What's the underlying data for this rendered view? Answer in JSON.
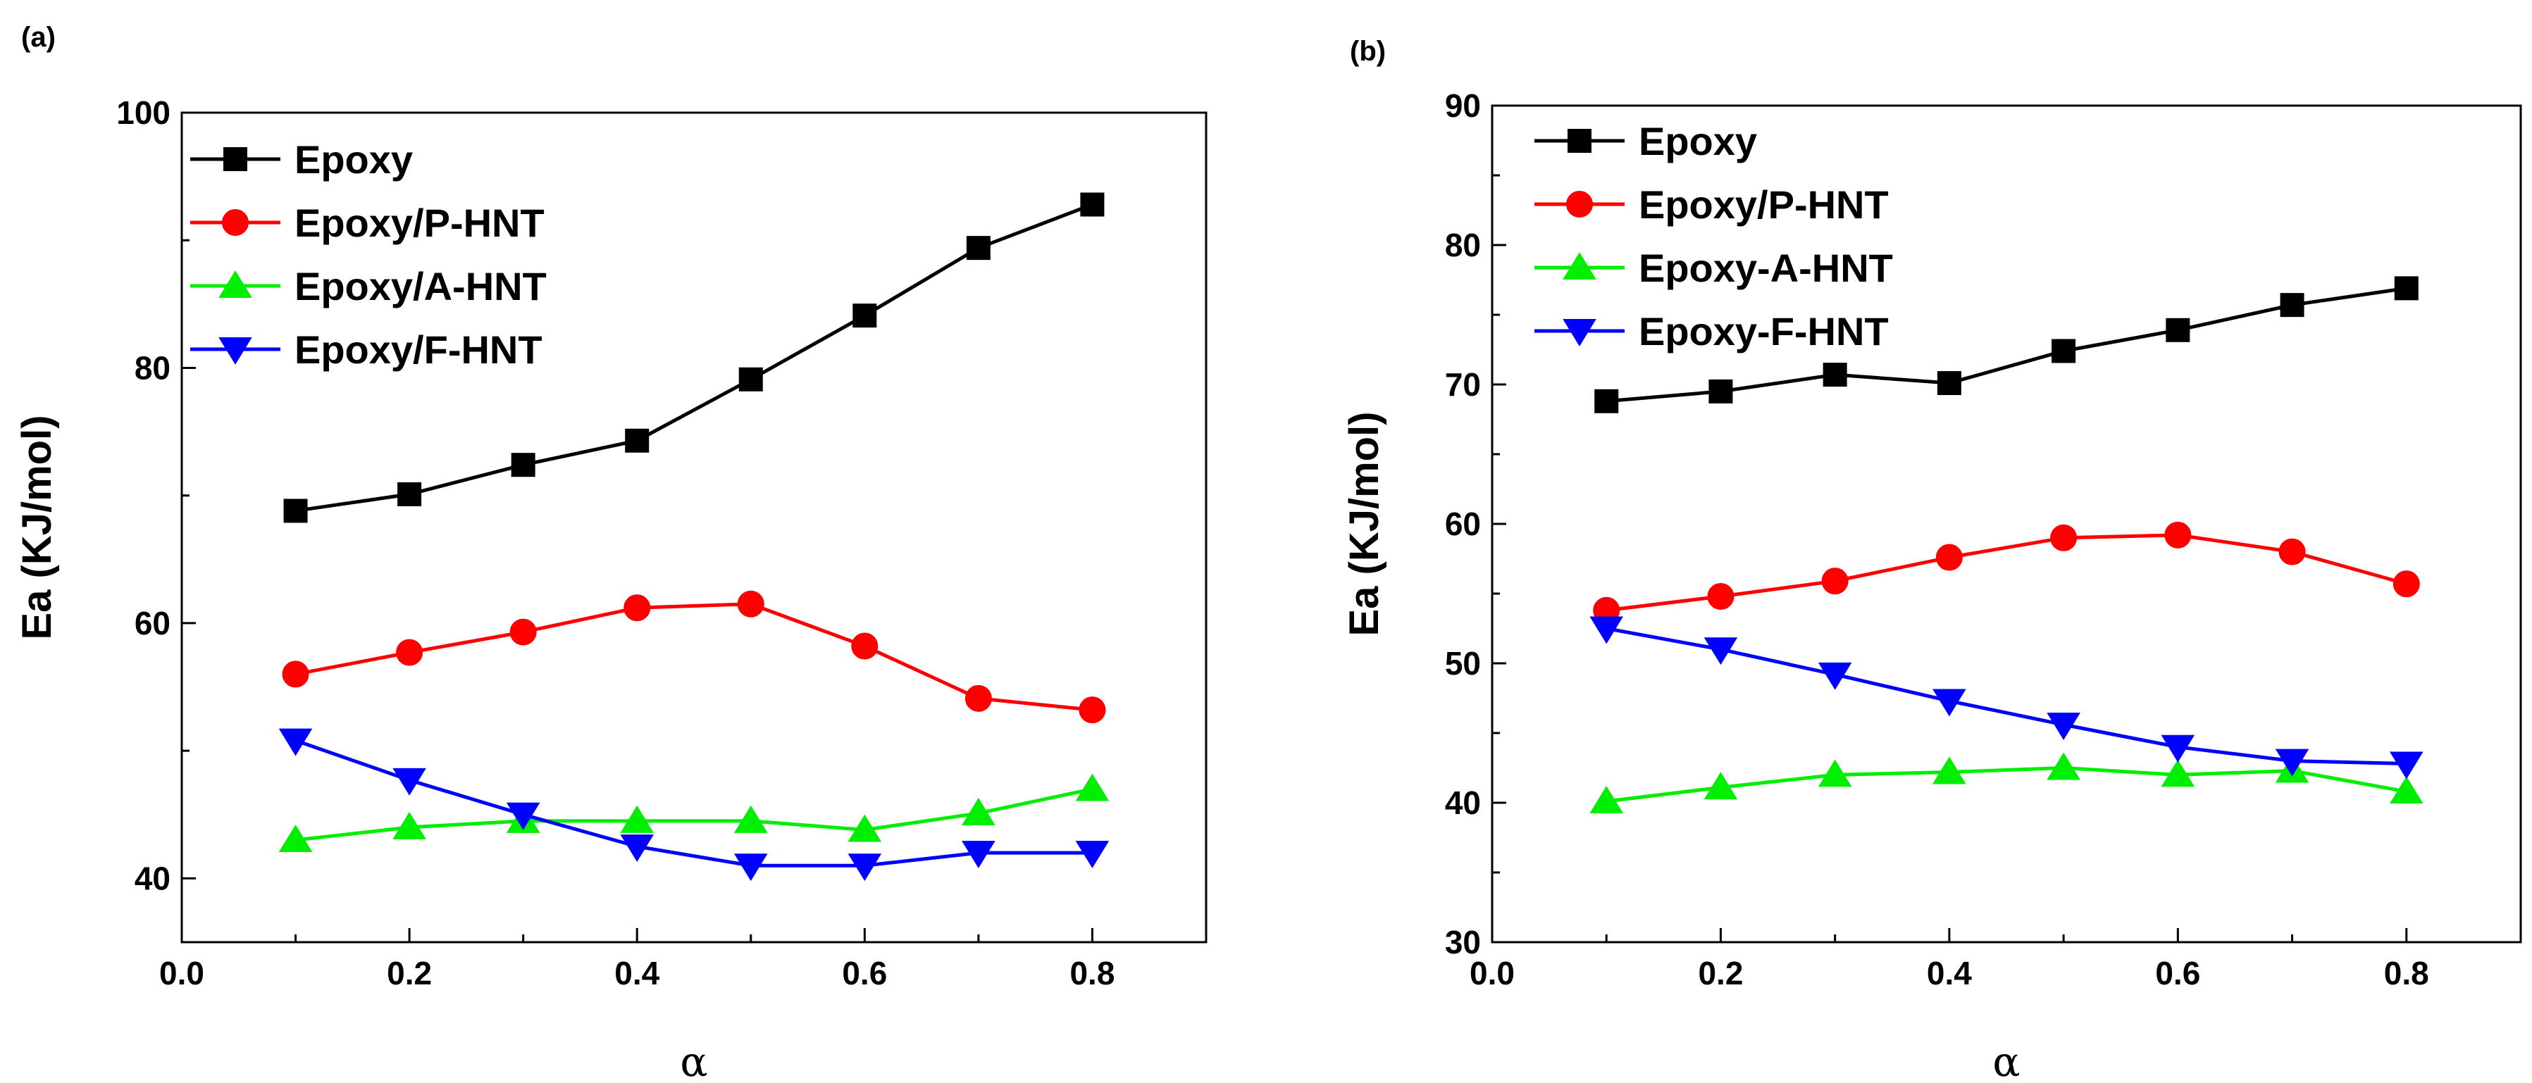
{
  "chart_data": [
    {
      "type": "line",
      "panel_label": "(a)",
      "title": "",
      "xlabel": "α",
      "ylabel": "Ea (KJ/mol)",
      "xlim": [
        0.0,
        0.9
      ],
      "ylim": [
        35,
        100
      ],
      "xticks": [
        "0.0",
        "0.2",
        "0.4",
        "0.6",
        "0.8"
      ],
      "yticks": [
        "40",
        "60",
        "80",
        "100"
      ],
      "legend_position": "top-left",
      "x": [
        0.1,
        0.2,
        0.3,
        0.4,
        0.5,
        0.6,
        0.7,
        0.8
      ],
      "series": [
        {
          "name": "Epoxy",
          "color": "#000000",
          "marker": "square",
          "values": [
            68.8,
            70.1,
            72.4,
            74.3,
            79.1,
            84.1,
            89.4,
            92.8
          ]
        },
        {
          "name": "Epoxy/P-HNT",
          "color": "#ff0000",
          "marker": "circle",
          "values": [
            56.0,
            57.7,
            59.3,
            61.2,
            61.5,
            58.2,
            54.1,
            53.2
          ]
        },
        {
          "name": "Epoxy/A-HNT",
          "color": "#00ee00",
          "marker": "triangle-up",
          "values": [
            43.0,
            44.0,
            44.5,
            44.5,
            44.5,
            43.8,
            45.1,
            47.0
          ]
        },
        {
          "name": "Epoxy/F-HNT",
          "color": "#0000ff",
          "marker": "triangle-down",
          "values": [
            50.8,
            47.7,
            45.0,
            42.5,
            41.0,
            41.0,
            42.0,
            42.0
          ]
        }
      ]
    },
    {
      "type": "line",
      "panel_label": "(b)",
      "title": "",
      "xlabel": "α",
      "ylabel": "Ea (KJ/mol)",
      "xlim": [
        0.0,
        0.9
      ],
      "ylim": [
        30,
        90
      ],
      "xticks": [
        "0.0",
        "0.2",
        "0.4",
        "0.6",
        "0.8"
      ],
      "yticks": [
        "30",
        "40",
        "50",
        "60",
        "70",
        "80",
        "90"
      ],
      "legend_position": "top-left",
      "x": [
        0.1,
        0.2,
        0.3,
        0.4,
        0.5,
        0.6,
        0.7,
        0.8
      ],
      "series": [
        {
          "name": "Epoxy",
          "color": "#000000",
          "marker": "square",
          "values": [
            68.8,
            69.5,
            70.7,
            70.1,
            72.4,
            73.9,
            75.7,
            76.9
          ]
        },
        {
          "name": "Epoxy/P-HNT",
          "color": "#ff0000",
          "marker": "circle",
          "values": [
            53.8,
            54.8,
            55.9,
            57.6,
            59.0,
            59.2,
            58.0,
            55.7
          ]
        },
        {
          "name": "Epoxy-A-HNT",
          "color": "#00ee00",
          "marker": "triangle-up",
          "values": [
            40.1,
            41.1,
            42.0,
            42.2,
            42.5,
            42.0,
            42.3,
            40.8
          ]
        },
        {
          "name": "Epoxy-F-HNT",
          "color": "#0000ff",
          "marker": "triangle-down",
          "values": [
            52.5,
            51.0,
            49.2,
            47.3,
            45.6,
            44.0,
            43.0,
            42.8
          ]
        }
      ]
    }
  ]
}
